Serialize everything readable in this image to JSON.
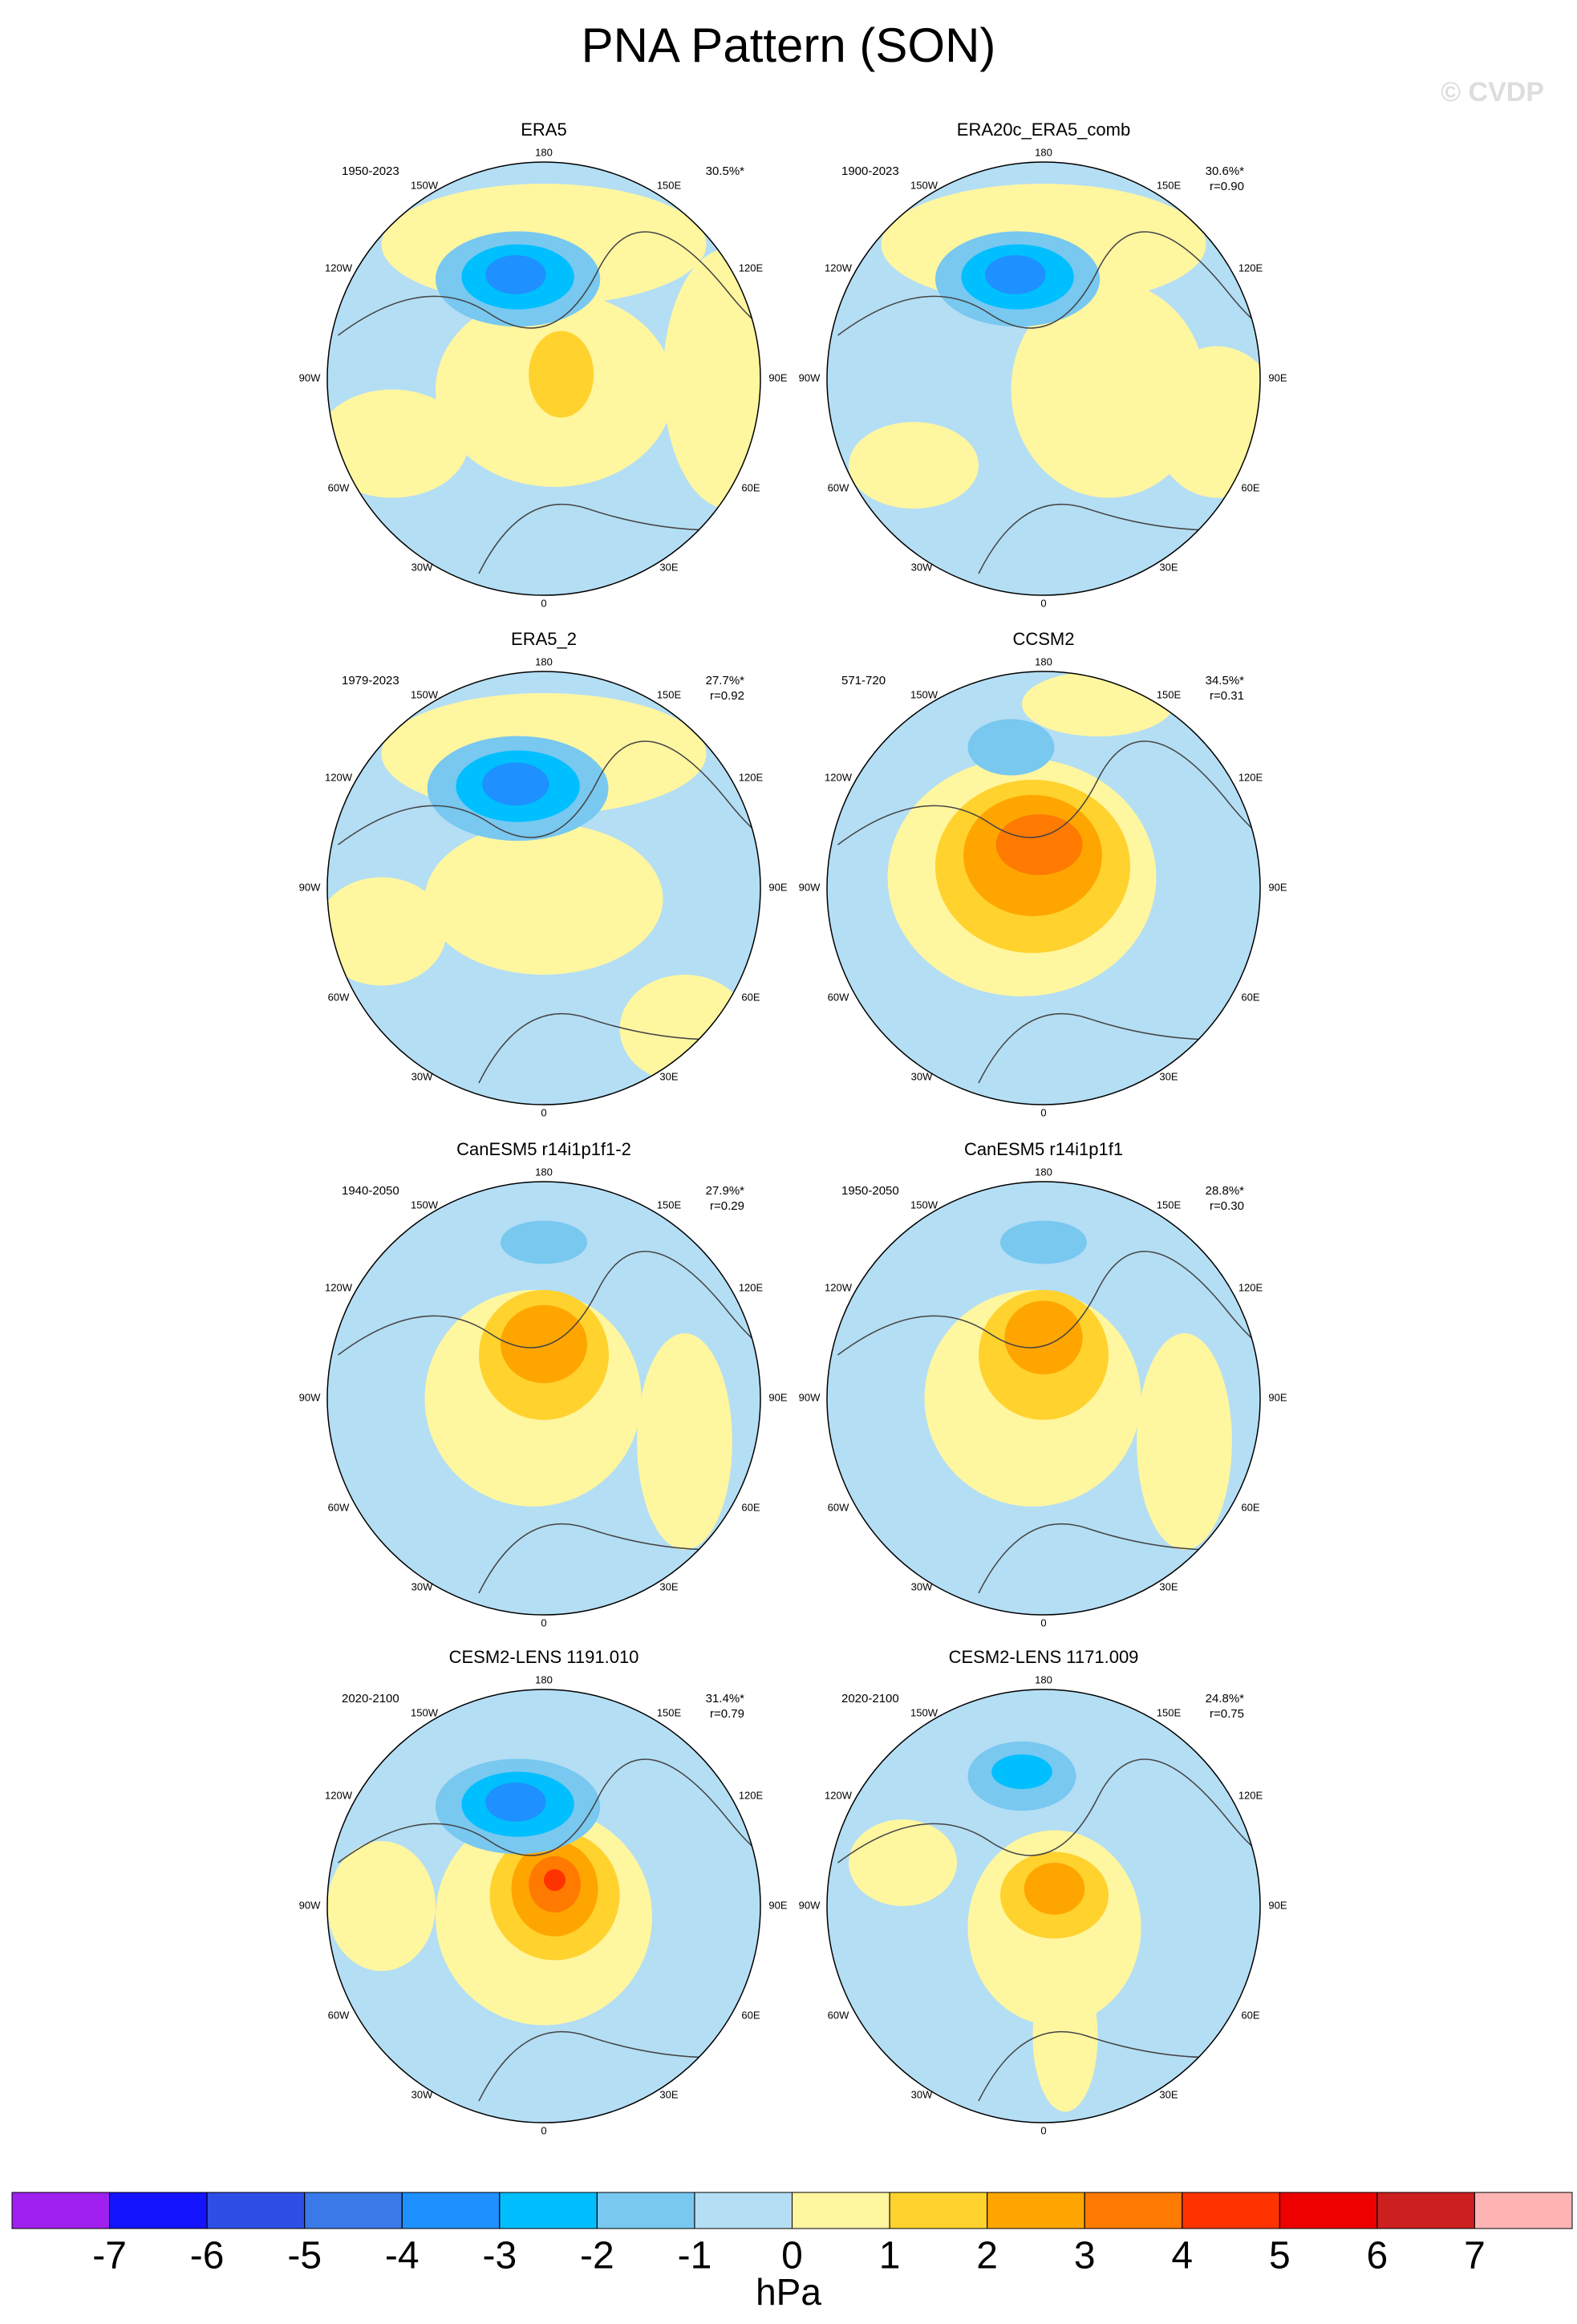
{
  "title": "PNA Pattern (SON)",
  "watermark": "© CVDP",
  "longitude_labels": [
    "180",
    "150E",
    "120E",
    "90E",
    "60E",
    "30E",
    "0",
    "30W",
    "60W",
    "90W",
    "120W",
    "150W"
  ],
  "panels": [
    {
      "title": "ERA5",
      "period": "1950-2023",
      "percent": "30.5%*"
    },
    {
      "title": "ERA20c_ERA5_comb",
      "period": "1900-2023",
      "percent": "30.6%*",
      "r": "r=0.90"
    },
    {
      "title": "ERA5_2",
      "period": "1979-2023",
      "percent": "27.7%*",
      "r": "r=0.92"
    },
    {
      "title": "CCSM2",
      "period": "571-720",
      "percent": "34.5%*",
      "r": "r=0.31"
    },
    {
      "title": "CanESM5 r14i1p1f1-2",
      "period": "1940-2050",
      "percent": "27.9%*",
      "r": "r=0.29"
    },
    {
      "title": "CanESM5 r14i1p1f1",
      "period": "1950-2050",
      "percent": "28.8%*",
      "r": "r=0.30"
    },
    {
      "title": "CESM2-LENS 1191.010",
      "period": "2020-2100",
      "percent": "31.4%*",
      "r": "r=0.79"
    },
    {
      "title": "CESM2-LENS 1171.009",
      "period": "2020-2100",
      "percent": "24.8%*",
      "r": "r=0.75"
    }
  ],
  "colorbar": {
    "ticks": [
      -7,
      -6,
      -5,
      -4,
      -3,
      -2,
      -1,
      0,
      1,
      2,
      3,
      4,
      5,
      6,
      7
    ],
    "colors": [
      "#a020f0",
      "#1414ff",
      "#2e4fe6",
      "#3a7ae8",
      "#1e90ff",
      "#00bfff",
      "#78c8f0",
      "#b4def4",
      "#fff6a0",
      "#ffd22e",
      "#ffa500",
      "#ff7a00",
      "#ff3300",
      "#ec0000",
      "#cc2020",
      "#ffb4b4"
    ],
    "unit": "hPa"
  }
}
